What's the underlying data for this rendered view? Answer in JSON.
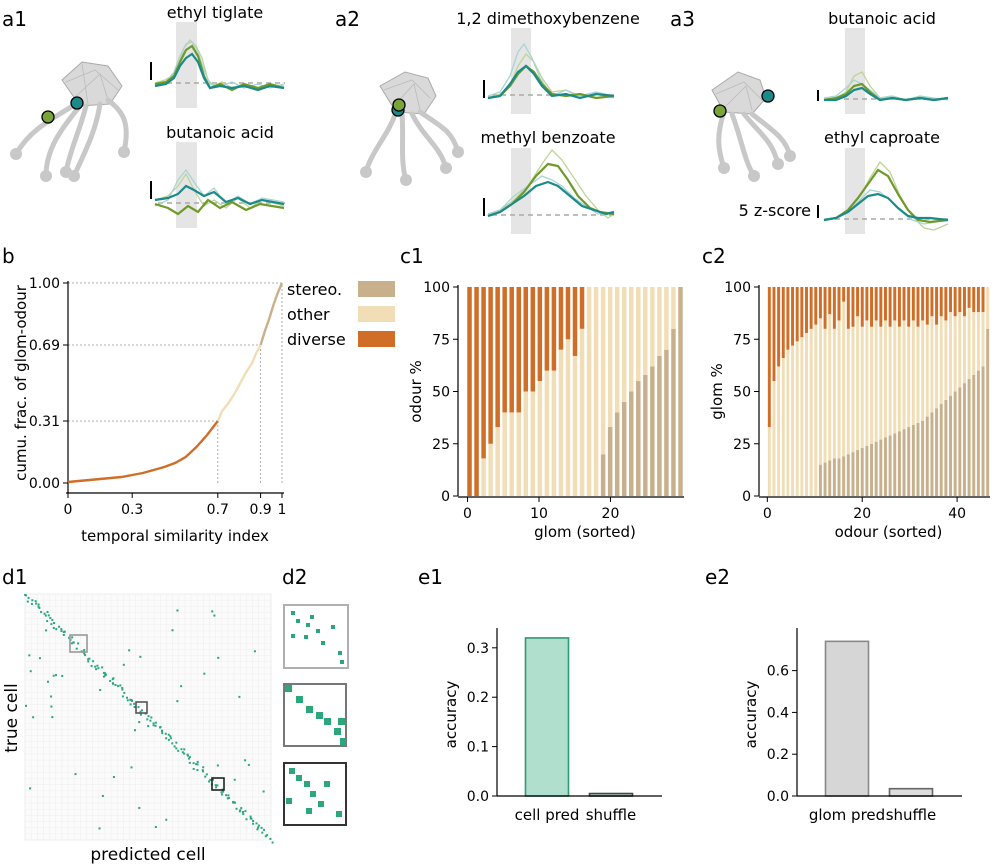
{
  "labels": {
    "a1": "a1",
    "a2": "a2",
    "a3": "a3",
    "b": "b",
    "c1": "c1",
    "c2": "c2",
    "d1": "d1",
    "d2": "d2",
    "e1": "e1",
    "e2": "e2"
  },
  "colors": {
    "stereo": "#c9b08c",
    "other": "#f1deb6",
    "diverse": "#d06e28",
    "green_trace": "#6f9a2a",
    "teal_trace": "#1b8a8a",
    "cell_bar": "#b1dfcd",
    "cell_edge": "#2e9b72",
    "glom_bar": "#d6d6d6",
    "glom_edge": "#888888",
    "matrix_dot": "#2ca77c"
  },
  "traces": {
    "a1_top": "ethyl tiglate",
    "a1_bottom": "butanoic acid",
    "a2_top": "1,2 dimethoxybenzene",
    "a2_bottom": "methyl benzoate",
    "a3_top": "butanoic acid",
    "a3_bottom": "ethyl caproate",
    "scale_label": "5 z-score"
  },
  "chart_data": [
    {
      "id": "b",
      "type": "line",
      "xlabel": "temporal similarity index",
      "ylabel": "cumu. frac. of glom-odour",
      "xlim": [
        0,
        1
      ],
      "ylim": [
        0,
        1
      ],
      "xticks": [
        "0",
        "0.3",
        "0.7",
        "0.9",
        "1"
      ],
      "xtick_values": [
        0,
        0.3,
        0.7,
        0.9,
        1
      ],
      "yticks": [
        "0.00",
        "0.31",
        "0.69",
        "1.00"
      ],
      "ytick_values": [
        0,
        0.31,
        0.69,
        1.0
      ],
      "legend": [
        "stereo.",
        "other",
        "diverse"
      ],
      "thresholds": [
        0.7,
        0.9
      ],
      "x": [
        0,
        0.05,
        0.1,
        0.15,
        0.2,
        0.25,
        0.3,
        0.35,
        0.4,
        0.45,
        0.5,
        0.55,
        0.6,
        0.65,
        0.7,
        0.72,
        0.75,
        0.78,
        0.8,
        0.83,
        0.86,
        0.88,
        0.9,
        0.92,
        0.94,
        0.96,
        0.98,
        1.0
      ],
      "y": [
        0.005,
        0.01,
        0.015,
        0.02,
        0.025,
        0.03,
        0.04,
        0.05,
        0.065,
        0.08,
        0.1,
        0.13,
        0.18,
        0.24,
        0.31,
        0.36,
        0.4,
        0.45,
        0.49,
        0.55,
        0.6,
        0.65,
        0.69,
        0.76,
        0.82,
        0.89,
        0.95,
        1.0
      ]
    },
    {
      "id": "c1",
      "type": "bar",
      "stacked": true,
      "xlabel": "glom (sorted)",
      "ylabel": "odour %",
      "ylim": [
        0,
        100
      ],
      "xticks": [
        "0",
        "10",
        "20"
      ],
      "xtick_values": [
        0,
        10,
        20
      ],
      "yticks": [
        "0",
        "25",
        "50",
        "75",
        "100"
      ],
      "series": [
        {
          "name": "stereo.",
          "values": [
            0,
            0,
            0,
            0,
            0,
            0,
            0,
            0,
            0,
            0,
            0,
            0,
            0,
            0,
            0,
            0,
            0,
            0,
            0,
            20,
            33,
            40,
            45,
            50,
            55,
            58,
            62,
            67,
            70,
            80,
            100
          ]
        },
        {
          "name": "other",
          "values": [
            0,
            0,
            18,
            25,
            33,
            40,
            40,
            40,
            50,
            50,
            55,
            60,
            60,
            70,
            75,
            67,
            80,
            100,
            100,
            80,
            67,
            60,
            55,
            50,
            45,
            42,
            38,
            33,
            30,
            20,
            0
          ]
        },
        {
          "name": "diverse",
          "values": [
            100,
            100,
            82,
            75,
            67,
            60,
            60,
            60,
            50,
            50,
            45,
            40,
            40,
            30,
            25,
            33,
            20,
            0,
            0,
            0,
            0,
            0,
            0,
            0,
            0,
            0,
            0,
            0,
            0,
            0,
            0
          ]
        }
      ]
    },
    {
      "id": "c2",
      "type": "bar",
      "stacked": true,
      "xlabel": "odour (sorted)",
      "ylabel": "glom %",
      "ylim": [
        0,
        100
      ],
      "xticks": [
        "0",
        "20",
        "40"
      ],
      "xtick_values": [
        0,
        20,
        40
      ],
      "yticks": [
        "0",
        "25",
        "50",
        "75",
        "100"
      ],
      "series": [
        {
          "name": "stereo.",
          "values": [
            0,
            0,
            0,
            0,
            0,
            0,
            0,
            0,
            0,
            0,
            0,
            15,
            16,
            17,
            18,
            18,
            19,
            20,
            21,
            22,
            23,
            24,
            25,
            26,
            27,
            28,
            29,
            30,
            31,
            32,
            33,
            34,
            35,
            36,
            38,
            40,
            42,
            44,
            46,
            48,
            50,
            52,
            54,
            56,
            58,
            60,
            62,
            80
          ]
        },
        {
          "name": "other",
          "values": [
            33,
            55,
            62,
            66,
            70,
            72,
            74,
            76,
            78,
            80,
            82,
            70,
            64,
            70,
            62,
            66,
            74,
            60,
            60,
            64,
            58,
            60,
            56,
            58,
            54,
            56,
            52,
            54,
            50,
            52,
            48,
            50,
            46,
            48,
            44,
            46,
            40,
            42,
            38,
            40,
            36,
            36,
            32,
            34,
            30,
            28,
            26,
            20
          ]
        },
        {
          "name": "diverse",
          "values": [
            67,
            45,
            38,
            34,
            30,
            28,
            26,
            24,
            22,
            20,
            18,
            15,
            20,
            13,
            20,
            16,
            7,
            20,
            19,
            14,
            19,
            16,
            19,
            16,
            19,
            16,
            19,
            16,
            19,
            16,
            19,
            16,
            19,
            16,
            18,
            14,
            18,
            14,
            16,
            12,
            14,
            12,
            14,
            10,
            12,
            12,
            12,
            0
          ]
        }
      ]
    },
    {
      "id": "e1",
      "type": "bar",
      "categories": [
        "cell pred",
        "shuffle"
      ],
      "values": [
        0.32,
        0.005
      ],
      "ylabel": "accuracy",
      "ylim": [
        0,
        0.33
      ],
      "yticks": [
        "0.0",
        "0.1",
        "0.2",
        "0.3"
      ],
      "ytick_values": [
        0,
        0.1,
        0.2,
        0.3
      ]
    },
    {
      "id": "e2",
      "type": "bar",
      "categories": [
        "glom pred",
        "shuffle"
      ],
      "values": [
        0.74,
        0.035
      ],
      "ylabel": "accuracy",
      "ylim": [
        0,
        0.78
      ],
      "yticks": [
        "0.0",
        "0.2",
        "0.4",
        "0.6"
      ],
      "ytick_values": [
        0,
        0.2,
        0.4,
        0.6
      ]
    },
    {
      "id": "d1",
      "type": "heatmap",
      "xlabel": "predicted cell",
      "ylabel": "true cell"
    }
  ]
}
